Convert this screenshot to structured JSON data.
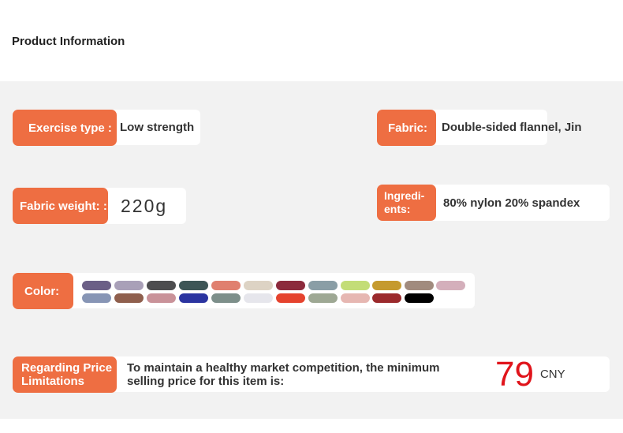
{
  "header": {
    "title": "Product Information"
  },
  "exercise_type": {
    "label": "Exercise type",
    "colon": ":",
    "value": "Low strength"
  },
  "fabric": {
    "label": "Fabric:",
    "value": "Double-sided flannel, Jin"
  },
  "fabric_weight": {
    "label": "Fabric weight:",
    "colon": ":",
    "value": "220g"
  },
  "ingredients": {
    "label": "Ingredi-\nents:",
    "value": "80% nylon 20% spandex"
  },
  "color": {
    "label": "Color:"
  },
  "price": {
    "label": "Regarding Price Limitations",
    "text": "To maintain a healthy market competition, the minimum selling price for this item is:",
    "amount": "79",
    "currency": "CNY"
  }
}
